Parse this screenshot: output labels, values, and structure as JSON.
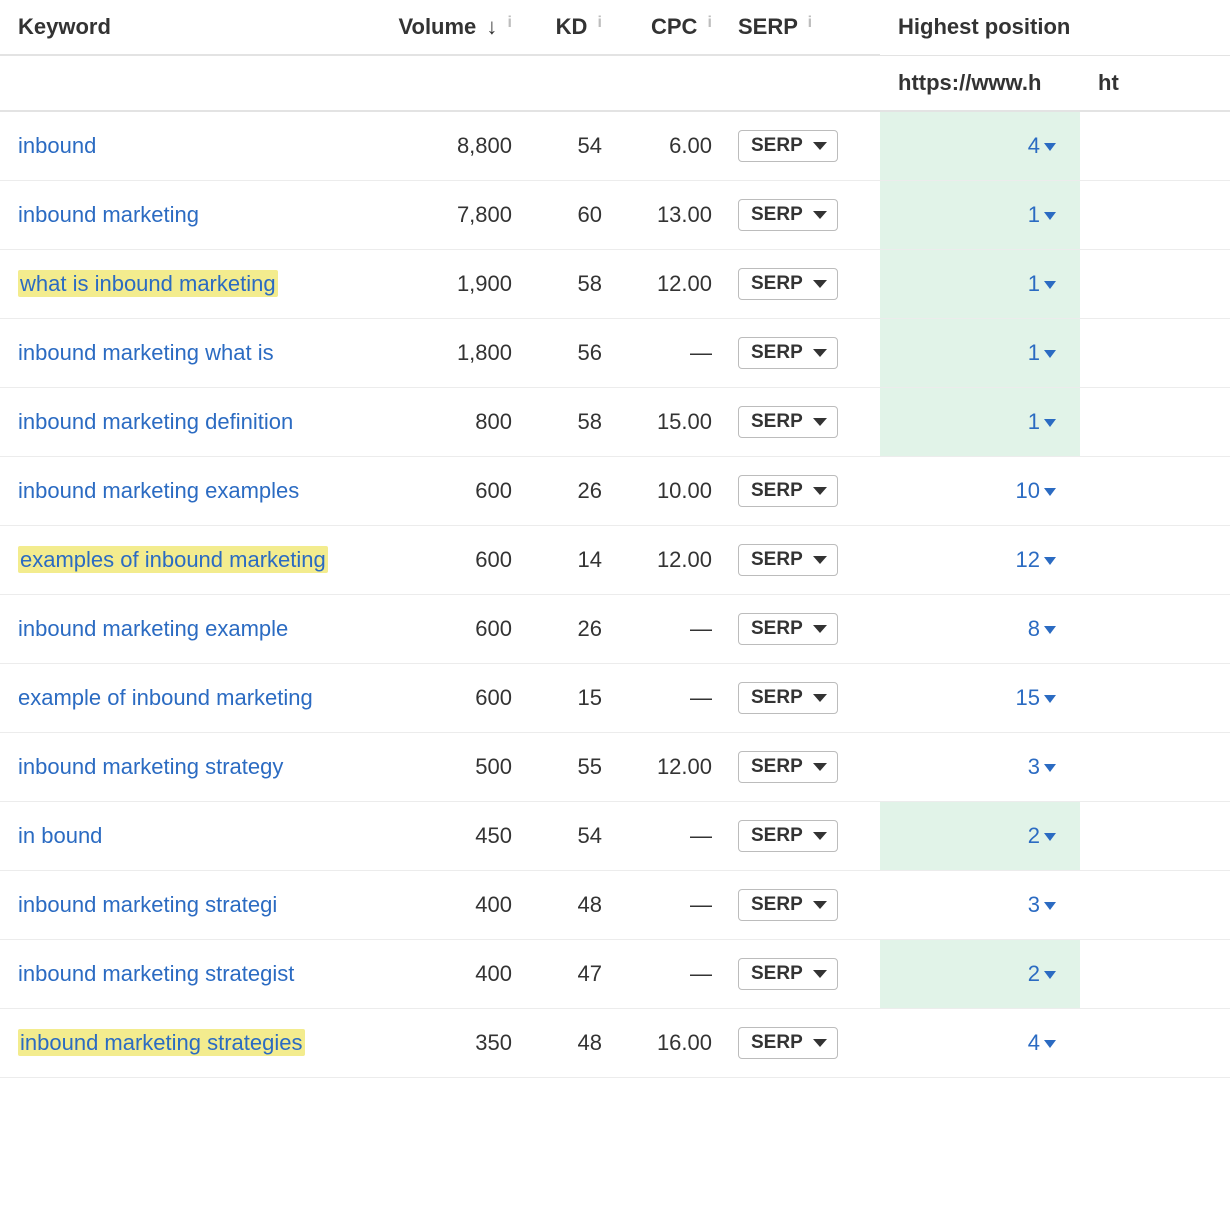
{
  "columns": {
    "keyword": "Keyword",
    "volume": "Volume",
    "kd": "KD",
    "cpc": "CPC",
    "serp": "SERP",
    "highest_position": "Highest position"
  },
  "sort_indicator": "↓",
  "info_glyph": "i",
  "serp_button_label": "SERP",
  "subheader": {
    "url1": "https://www.h",
    "url2": "ht"
  },
  "rows": [
    {
      "keyword": "inbound",
      "highlighted": false,
      "volume": "8,800",
      "kd": "54",
      "cpc": "6.00",
      "position": "4",
      "pos_green": true
    },
    {
      "keyword": "inbound marketing",
      "highlighted": false,
      "volume": "7,800",
      "kd": "60",
      "cpc": "13.00",
      "position": "1",
      "pos_green": true
    },
    {
      "keyword": "what is inbound marketing",
      "highlighted": true,
      "volume": "1,900",
      "kd": "58",
      "cpc": "12.00",
      "position": "1",
      "pos_green": true
    },
    {
      "keyword": "inbound marketing what is",
      "highlighted": false,
      "volume": "1,800",
      "kd": "56",
      "cpc": "—",
      "position": "1",
      "pos_green": true
    },
    {
      "keyword": "inbound marketing definition",
      "highlighted": false,
      "volume": "800",
      "kd": "58",
      "cpc": "15.00",
      "position": "1",
      "pos_green": true
    },
    {
      "keyword": "inbound marketing examples",
      "highlighted": false,
      "volume": "600",
      "kd": "26",
      "cpc": "10.00",
      "position": "10",
      "pos_green": false
    },
    {
      "keyword": "examples of inbound marketing",
      "highlighted": true,
      "volume": "600",
      "kd": "14",
      "cpc": "12.00",
      "position": "12",
      "pos_green": false
    },
    {
      "keyword": "inbound marketing example",
      "highlighted": false,
      "volume": "600",
      "kd": "26",
      "cpc": "—",
      "position": "8",
      "pos_green": false
    },
    {
      "keyword": "example of inbound marketing",
      "highlighted": false,
      "volume": "600",
      "kd": "15",
      "cpc": "—",
      "position": "15",
      "pos_green": false
    },
    {
      "keyword": "inbound marketing strategy",
      "highlighted": false,
      "volume": "500",
      "kd": "55",
      "cpc": "12.00",
      "position": "3",
      "pos_green": false
    },
    {
      "keyword": "in bound",
      "highlighted": false,
      "volume": "450",
      "kd": "54",
      "cpc": "—",
      "position": "2",
      "pos_green": true
    },
    {
      "keyword": "inbound marketing strategi",
      "highlighted": false,
      "volume": "400",
      "kd": "48",
      "cpc": "—",
      "position": "3",
      "pos_green": false
    },
    {
      "keyword": "inbound marketing strategist",
      "highlighted": false,
      "volume": "400",
      "kd": "47",
      "cpc": "—",
      "position": "2",
      "pos_green": true
    },
    {
      "keyword": "inbound marketing strategies",
      "highlighted": true,
      "volume": "350",
      "kd": "48",
      "cpc": "16.00",
      "position": "4",
      "pos_green": false
    }
  ],
  "colors": {
    "link": "#2b6bc2",
    "highlight_bg": "#f3ec8e",
    "pos_green_bg": "#e1f3e8",
    "border": "#e3e3e3",
    "info_grey": "#bdbdbd"
  }
}
